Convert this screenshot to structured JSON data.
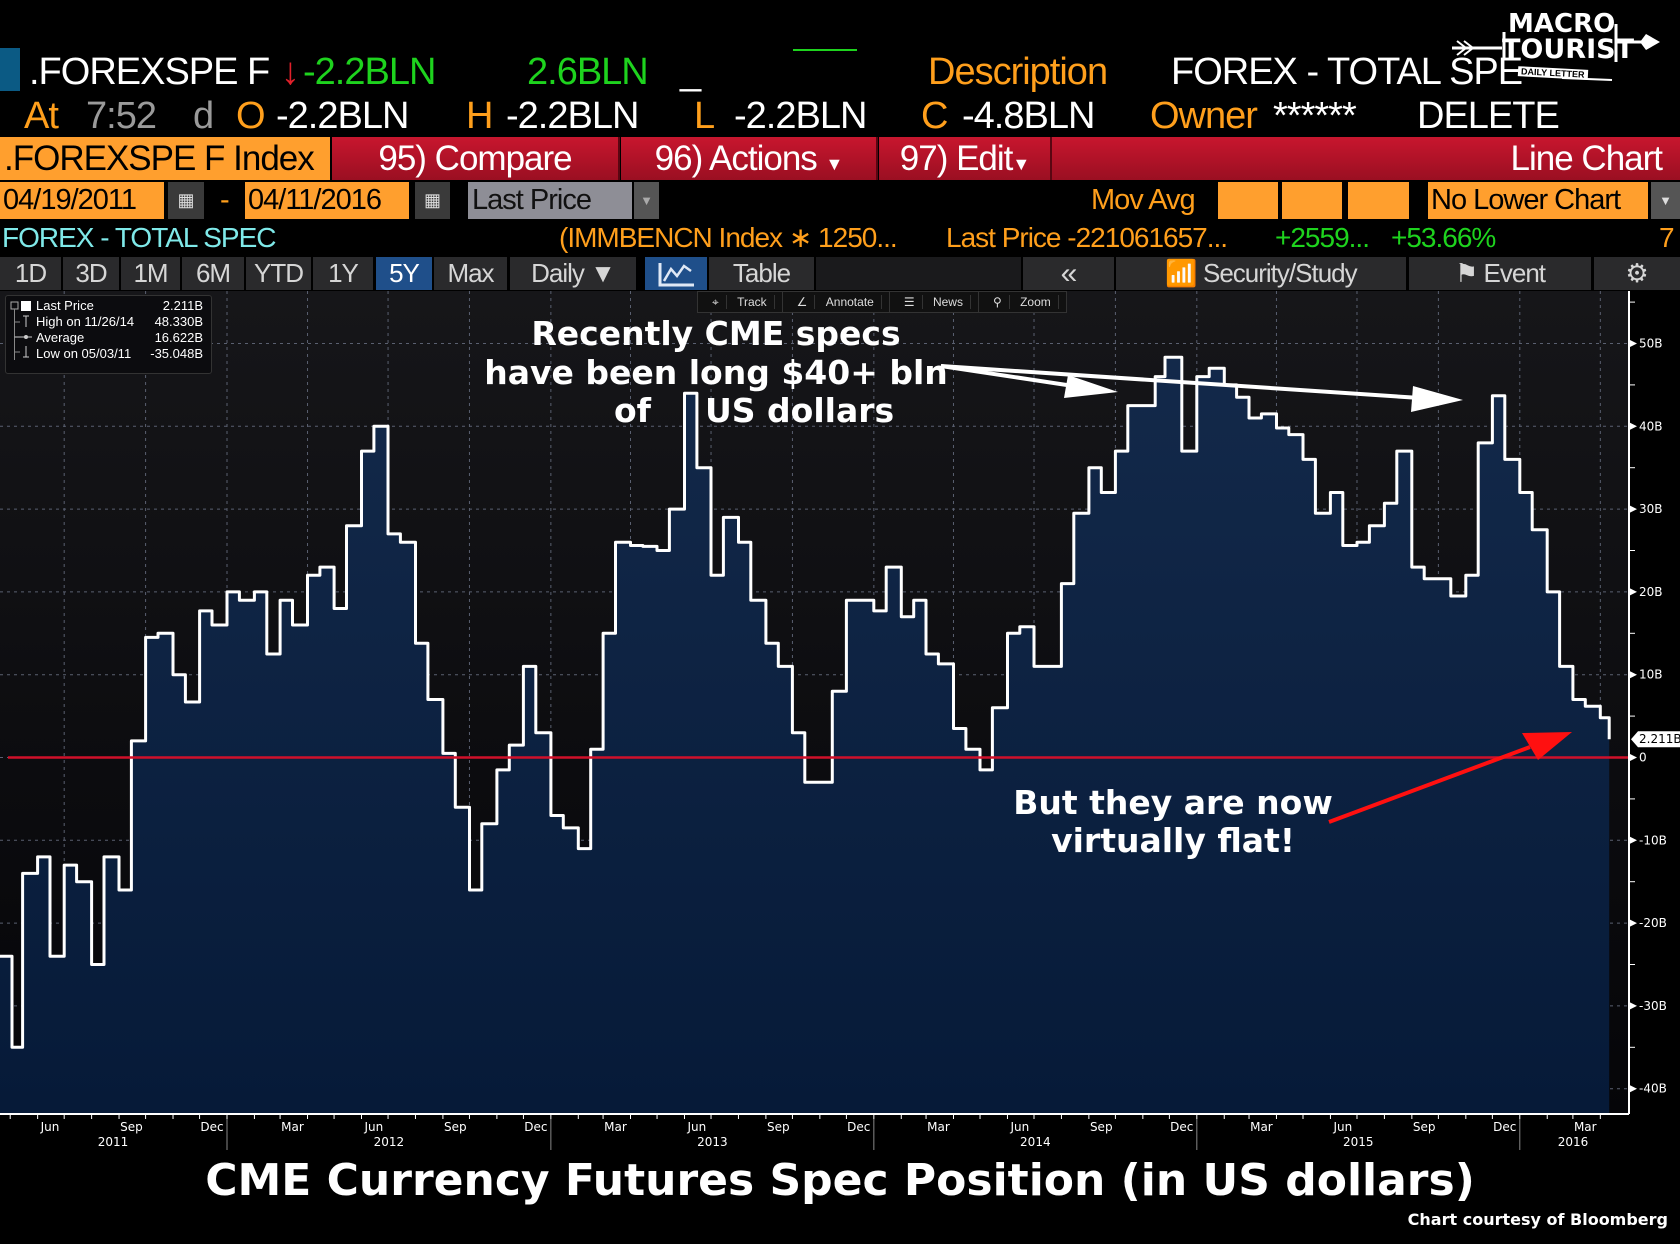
{
  "header": {
    "ticker": ".FOREXSPE F",
    "change_arrow": "↓",
    "last": "-2.2BLN",
    "change": "2.6BLN",
    "underscore": "_",
    "description_label": "Description",
    "description_value": "FOREX - TOTAL SPE",
    "at_label": "At",
    "time": "7:52",
    "d_label": "d",
    "open_label": "O",
    "open": "-2.2BLN",
    "high_label": "H",
    "high": "-2.2BLN",
    "low_label": "L",
    "low": "-2.2BLN",
    "close_label": "C",
    "close": "-4.8BLN",
    "owner_label": "Owner",
    "owner": "******",
    "delete": "DELETE"
  },
  "logo": {
    "line1": "MACRO",
    "line2": "TOURIST",
    "line3": "DAILY LETTER"
  },
  "menubar": {
    "security": ".FOREXSPE F Index",
    "compare": "95) Compare",
    "actions": "96) Actions",
    "edit": "97) Edit",
    "chart_type": "Line Chart"
  },
  "settings": {
    "start_date": "04/19/2011",
    "dash": "-",
    "end_date": "04/11/2016",
    "field": "Last Price",
    "mov_avg_label": "Mov Avg",
    "lower_chart": "No Lower Chart"
  },
  "infoline": {
    "name": "FOREX - TOTAL SPEC",
    "formula": "(IMMBENCN Index ∗ 1250...",
    "last_price": "Last Price -221061657...",
    "change": "+2559...",
    "pct": "+53.66%",
    "count": "7"
  },
  "toolbar": {
    "periods": [
      "1D",
      "3D",
      "1M",
      "6M",
      "YTD",
      "1Y",
      "5Y",
      "Max"
    ],
    "active_period": "5Y",
    "frequency": "Daily ▼",
    "table": "Table",
    "collapse": "«",
    "security_study": "Security/Study",
    "event": "Event"
  },
  "mini_toolbar": {
    "track": "Track",
    "annotate": "Annotate",
    "news": "News",
    "zoom": "Zoom"
  },
  "legend": {
    "last_label": "Last Price",
    "last_value": "2.211B",
    "high_label": "High on 11/26/14",
    "high_value": "48.330B",
    "avg_label": "Average",
    "avg_value": "16.622B",
    "low_label": "Low on 05/03/11",
    "low_value": "-35.048B"
  },
  "annotations": {
    "top_line1": "Recently CME specs",
    "top_line2": "have been long $40+ bln",
    "top_line3a": "of",
    "top_line3b": "US dollars",
    "bottom_line1": "But they are now",
    "bottom_line2": "virtually flat!"
  },
  "footer": {
    "title": "CME Currency Futures Spec Position (in US dollars)",
    "credit": "Chart courtesy of Bloomberg"
  },
  "colors": {
    "line": "#ffffff",
    "area_top": "#13294a",
    "area_bottom": "#061a38",
    "zero_line": "#d0102a",
    "annotation_arrow_red": "#ff1010",
    "annotation_arrow_white": "#ffffff",
    "accent_orange": "#ff9f1c",
    "positive_green": "#1ed31e"
  },
  "chart_data": {
    "type": "area",
    "step": true,
    "xlim": [
      "2011-04-19",
      "2016-04-11"
    ],
    "ylim": [
      -42,
      55
    ],
    "y_unit": "B",
    "y_ticks": [
      50,
      40,
      30,
      20,
      10,
      0,
      -10,
      -20,
      -30,
      -40
    ],
    "y_tick_labels": [
      "50B",
      "40B",
      "30B",
      "20B",
      "10B",
      "0",
      "-10B",
      "-20B",
      "-30B",
      "-40B"
    ],
    "x_tick_labels": [
      {
        "month": "2011-06",
        "label": "Jun"
      },
      {
        "month": "2011-09",
        "label": "Sep"
      },
      {
        "month": "2011-12",
        "label": "Dec"
      },
      {
        "month": "2012-03",
        "label": "Mar"
      },
      {
        "month": "2012-06",
        "label": "Jun"
      },
      {
        "month": "2012-09",
        "label": "Sep"
      },
      {
        "month": "2012-12",
        "label": "Dec"
      },
      {
        "month": "2013-03",
        "label": "Mar"
      },
      {
        "month": "2013-06",
        "label": "Jun"
      },
      {
        "month": "2013-09",
        "label": "Sep"
      },
      {
        "month": "2013-12",
        "label": "Dec"
      },
      {
        "month": "2014-03",
        "label": "Mar"
      },
      {
        "month": "2014-06",
        "label": "Jun"
      },
      {
        "month": "2014-09",
        "label": "Sep"
      },
      {
        "month": "2014-12",
        "label": "Dec"
      },
      {
        "month": "2015-03",
        "label": "Mar"
      },
      {
        "month": "2015-06",
        "label": "Jun"
      },
      {
        "month": "2015-09",
        "label": "Sep"
      },
      {
        "month": "2015-12",
        "label": "Dec"
      },
      {
        "month": "2016-03",
        "label": "Mar"
      }
    ],
    "year_labels": [
      "2011",
      "2012",
      "2013",
      "2014",
      "2015",
      "2016"
    ],
    "reference_line": 0,
    "last_value_label": "2.211B",
    "grid": true,
    "points": [
      [
        "2011-04-19",
        -24
      ],
      [
        "2011-05-03",
        -35.0
      ],
      [
        "2011-05-15",
        -14
      ],
      [
        "2011-06-01",
        -12
      ],
      [
        "2011-06-15",
        -24
      ],
      [
        "2011-07-01",
        -13
      ],
      [
        "2011-07-15",
        -15
      ],
      [
        "2011-08-01",
        -25
      ],
      [
        "2011-08-15",
        -12
      ],
      [
        "2011-09-01",
        -16
      ],
      [
        "2011-09-15",
        2
      ],
      [
        "2011-10-01",
        14.5
      ],
      [
        "2011-10-15",
        15
      ],
      [
        "2011-11-01",
        10
      ],
      [
        "2011-11-15",
        6.7
      ],
      [
        "2011-12-01",
        17.7
      ],
      [
        "2011-12-15",
        16
      ],
      [
        "2012-01-01",
        20
      ],
      [
        "2012-01-15",
        19
      ],
      [
        "2012-02-01",
        20
      ],
      [
        "2012-02-15",
        12.5
      ],
      [
        "2012-03-01",
        19
      ],
      [
        "2012-03-15",
        16
      ],
      [
        "2012-04-01",
        22
      ],
      [
        "2012-04-15",
        23
      ],
      [
        "2012-05-01",
        18
      ],
      [
        "2012-05-15",
        28
      ],
      [
        "2012-06-01",
        37
      ],
      [
        "2012-06-15",
        40
      ],
      [
        "2012-07-01",
        27
      ],
      [
        "2012-07-15",
        26
      ],
      [
        "2012-08-01",
        13.8
      ],
      [
        "2012-08-15",
        7
      ],
      [
        "2012-09-01",
        0.5
      ],
      [
        "2012-09-15",
        -6
      ],
      [
        "2012-10-01",
        -16
      ],
      [
        "2012-10-15",
        -8
      ],
      [
        "2012-11-01",
        -1.5
      ],
      [
        "2012-11-15",
        1.5
      ],
      [
        "2012-12-01",
        11
      ],
      [
        "2012-12-15",
        3
      ],
      [
        "2013-01-01",
        -7
      ],
      [
        "2013-01-15",
        -8.5
      ],
      [
        "2013-02-01",
        -11
      ],
      [
        "2013-02-15",
        1
      ],
      [
        "2013-03-01",
        15
      ],
      [
        "2013-03-15",
        26
      ],
      [
        "2013-04-01",
        25.6
      ],
      [
        "2013-04-15",
        25.5
      ],
      [
        "2013-05-01",
        25
      ],
      [
        "2013-05-15",
        30
      ],
      [
        "2013-06-01",
        44
      ],
      [
        "2013-06-15",
        35
      ],
      [
        "2013-07-01",
        22
      ],
      [
        "2013-07-15",
        29
      ],
      [
        "2013-08-01",
        26
      ],
      [
        "2013-08-15",
        19
      ],
      [
        "2013-09-01",
        13.8
      ],
      [
        "2013-09-15",
        11
      ],
      [
        "2013-10-01",
        3
      ],
      [
        "2013-10-15",
        -3
      ],
      [
        "2013-11-01",
        -3
      ],
      [
        "2013-11-15",
        8
      ],
      [
        "2013-12-01",
        19
      ],
      [
        "2013-12-15",
        19
      ],
      [
        "2014-01-01",
        17.7
      ],
      [
        "2014-01-15",
        23
      ],
      [
        "2014-02-01",
        17
      ],
      [
        "2014-02-15",
        19
      ],
      [
        "2014-03-01",
        12.5
      ],
      [
        "2014-03-15",
        11.3
      ],
      [
        "2014-04-01",
        3.5
      ],
      [
        "2014-04-15",
        1
      ],
      [
        "2014-05-01",
        -1.5
      ],
      [
        "2014-05-15",
        6
      ],
      [
        "2014-06-01",
        15
      ],
      [
        "2014-06-15",
        15.8
      ],
      [
        "2014-07-01",
        11
      ],
      [
        "2014-07-15",
        11
      ],
      [
        "2014-08-01",
        21
      ],
      [
        "2014-08-15",
        29.5
      ],
      [
        "2014-09-01",
        35
      ],
      [
        "2014-09-15",
        32
      ],
      [
        "2014-10-01",
        37
      ],
      [
        "2014-10-15",
        42.5
      ],
      [
        "2014-11-01",
        42.5
      ],
      [
        "2014-11-15",
        46
      ],
      [
        "2014-11-26",
        48.33
      ],
      [
        "2014-12-15",
        37
      ],
      [
        "2015-01-01",
        46
      ],
      [
        "2015-01-15",
        47
      ],
      [
        "2015-02-01",
        45
      ],
      [
        "2015-02-15",
        43.5
      ],
      [
        "2015-03-01",
        41
      ],
      [
        "2015-03-15",
        41.5
      ],
      [
        "2015-04-01",
        39.8
      ],
      [
        "2015-04-15",
        39
      ],
      [
        "2015-05-01",
        36
      ],
      [
        "2015-05-15",
        29.5
      ],
      [
        "2015-06-01",
        32
      ],
      [
        "2015-06-15",
        25.6
      ],
      [
        "2015-07-01",
        26
      ],
      [
        "2015-07-15",
        28
      ],
      [
        "2015-08-01",
        30.7
      ],
      [
        "2015-08-15",
        37
      ],
      [
        "2015-09-01",
        23
      ],
      [
        "2015-09-15",
        21.6
      ],
      [
        "2015-10-01",
        21.6
      ],
      [
        "2015-10-15",
        19.5
      ],
      [
        "2015-11-01",
        22
      ],
      [
        "2015-11-15",
        38
      ],
      [
        "2015-12-01",
        43.7
      ],
      [
        "2015-12-15",
        36
      ],
      [
        "2016-01-01",
        32
      ],
      [
        "2016-01-15",
        27.5
      ],
      [
        "2016-02-01",
        20
      ],
      [
        "2016-02-15",
        11
      ],
      [
        "2016-03-01",
        7
      ],
      [
        "2016-03-15",
        6.2
      ],
      [
        "2016-04-01",
        4.8
      ],
      [
        "2016-04-11",
        2.211
      ]
    ]
  }
}
